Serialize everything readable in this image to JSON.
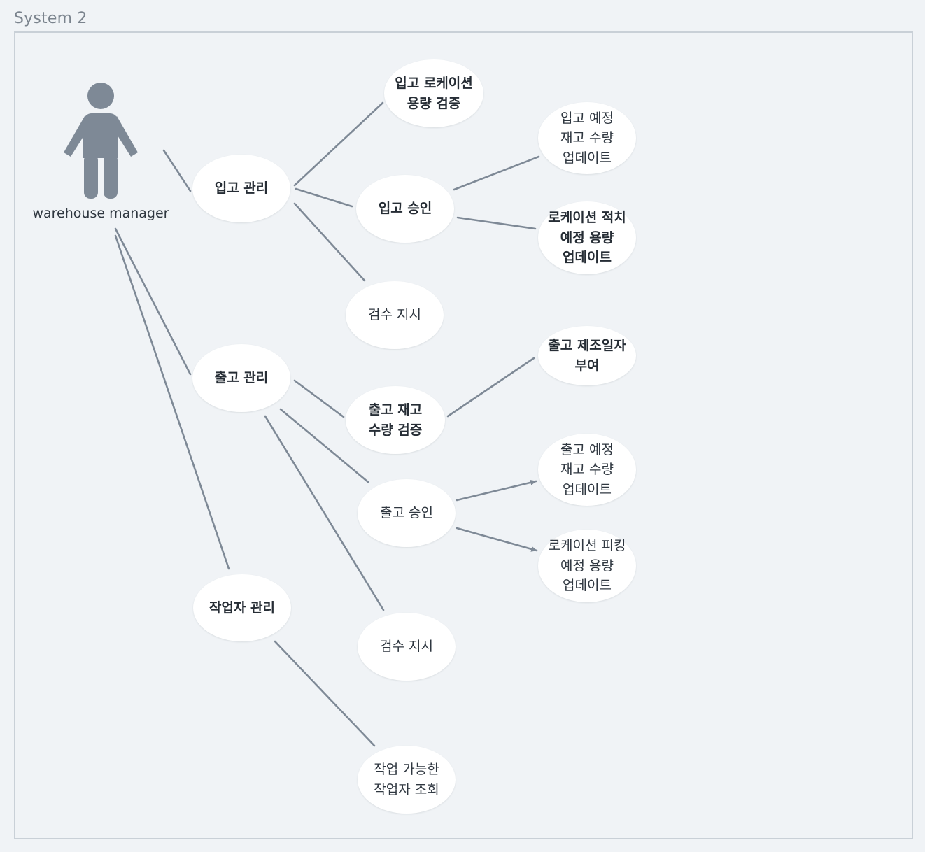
{
  "system": {
    "title": "System 2"
  },
  "actor": {
    "name": "warehouse manager",
    "icon": "person-icon"
  },
  "colors": {
    "background": "#f0f3f6",
    "frame": "#c9d0d7",
    "edge": "#7e8996",
    "actor": "#7e8996",
    "usecase_fill": "#ffffff",
    "text": "#2f3740"
  },
  "use_cases": {
    "inbound_mgmt": "입고 관리",
    "inbound_location_capacity_check": "입고 로케이션\n용량 검증",
    "inbound_approval": "입고 승인",
    "inbound_planned_stock_update": "입고 예정\n재고 수량\n업데이트",
    "location_putaway_planned_capacity_update": "로케이션 적치\n예정 용량\n업데이트",
    "inbound_inspection_order": "검수 지시",
    "outbound_mgmt": "출고 관리",
    "outbound_mfg_date_assign": "출고 제조일자\n부여",
    "outbound_stock_qty_check": "출고 재고\n수량 검증",
    "outbound_planned_stock_update": "출고 예정\n재고 수량\n업데이트",
    "outbound_approval": "출고 승인",
    "location_picking_planned_capacity_update": "로케이션 피킹\n예정 용량\n업데이트",
    "outbound_inspection_order": "검수 지시",
    "worker_mgmt": "작업자 관리",
    "available_worker_lookup": "작업 가능한\n작업자 조회"
  }
}
